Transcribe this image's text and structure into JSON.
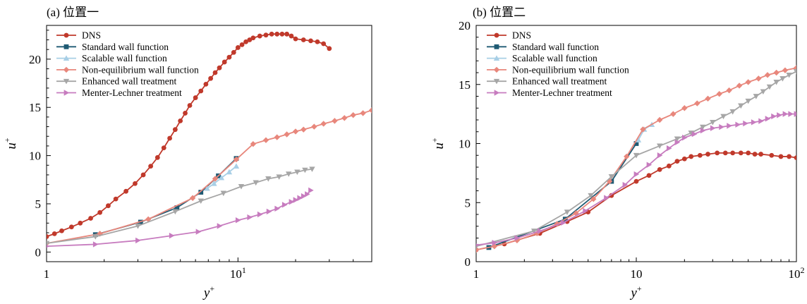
{
  "chart_data": [
    {
      "type": "line",
      "title": "(a) 位置一",
      "xlabel": "y",
      "xlabel_sup": "+",
      "ylabel": "u",
      "ylabel_sup": "+",
      "xscale": "log",
      "xlim": [
        1,
        50
      ],
      "ylim": [
        -1,
        23.5
      ],
      "xticks": [
        {
          "value": 1,
          "base": "1",
          "exp": ""
        },
        {
          "value": 10,
          "base": "10",
          "exp": "1"
        }
      ],
      "yticks": [
        0,
        5,
        10,
        15,
        20
      ],
      "legend_position": "top-left",
      "series": [
        {
          "name": "DNS",
          "color": "#c0392b",
          "marker": "circle",
          "marker_step": 1,
          "x": [
            1,
            1.1,
            1.2,
            1.35,
            1.5,
            1.7,
            1.9,
            2.1,
            2.3,
            2.6,
            2.9,
            3.2,
            3.5,
            3.8,
            4.1,
            4.4,
            4.7,
            5.0,
            5.3,
            5.6,
            6.0,
            6.4,
            6.8,
            7.2,
            7.6,
            8.0,
            8.5,
            9.0,
            9.5,
            10,
            10.5,
            11,
            11.5,
            12,
            13,
            14,
            15,
            16,
            17,
            18,
            19,
            20,
            22,
            24,
            26,
            28,
            30
          ],
          "y": [
            1.6,
            1.9,
            2.2,
            2.6,
            3.0,
            3.5,
            4.1,
            4.8,
            5.5,
            6.3,
            7.1,
            8.0,
            8.9,
            9.8,
            10.8,
            11.8,
            12.7,
            13.6,
            14.4,
            15.2,
            16.0,
            16.7,
            17.4,
            18.0,
            18.6,
            19.1,
            19.7,
            20.2,
            20.7,
            21.2,
            21.5,
            21.8,
            22.0,
            22.2,
            22.4,
            22.5,
            22.6,
            22.6,
            22.6,
            22.6,
            22.4,
            22.1,
            22.0,
            21.9,
            21.8,
            21.6,
            21.1
          ]
        },
        {
          "name": "Standard wall function",
          "color": "#1f5a73",
          "marker": "square",
          "marker_step": 1,
          "x": [
            1.8,
            3.1,
            4.8,
            6.4,
            7.9,
            9.8
          ],
          "y": [
            1.8,
            3.1,
            4.6,
            6.2,
            7.9,
            9.7
          ]
        },
        {
          "name": "Scalable wall function",
          "color": "#a8cfe6",
          "marker": "triangle-up",
          "marker_step": 1,
          "x": [
            6.9,
            7.5,
            8.2,
            9.0,
            9.8
          ],
          "y": [
            6.6,
            7.1,
            7.7,
            8.3,
            8.9
          ]
        },
        {
          "name": "Non-equilibrium wall function",
          "color": "#e8877c",
          "marker": "diamond",
          "marker_step": 1,
          "x": [
            1,
            1.9,
            3.4,
            5.8,
            7.6,
            9.8,
            12,
            14,
            16,
            18,
            20,
            22,
            25,
            28,
            32,
            36,
            40,
            45,
            50
          ],
          "y": [
            0.9,
            1.9,
            3.4,
            5.6,
            7.6,
            9.6,
            11.2,
            11.6,
            11.9,
            12.2,
            12.5,
            12.7,
            13.0,
            13.3,
            13.6,
            13.9,
            14.2,
            14.4,
            14.7
          ]
        },
        {
          "name": "Enhanced wall treatment",
          "color": "#a6a6a6",
          "marker": "triangle-down",
          "marker_step": 1,
          "x": [
            1,
            1.8,
            3.0,
            4.7,
            6.4,
            8.4,
            10.4,
            12.4,
            14.4,
            16.4,
            18.4,
            20.4,
            22.4,
            24.4
          ],
          "y": [
            0.9,
            1.6,
            2.7,
            4.2,
            5.3,
            6.1,
            6.8,
            7.2,
            7.6,
            7.8,
            8.1,
            8.3,
            8.5,
            8.6
          ]
        },
        {
          "name": "Menter-Lechner treatment",
          "color": "#c77cbf",
          "marker": "triangle-right",
          "marker_step": 1,
          "x": [
            1,
            1.8,
            3.0,
            4.5,
            6.2,
            8.0,
            10,
            11.5,
            13,
            14.5,
            16,
            17.5,
            19,
            20,
            21,
            22,
            23,
            24
          ],
          "y": [
            0.6,
            0.8,
            1.2,
            1.7,
            2.1,
            2.7,
            3.3,
            3.6,
            3.9,
            4.2,
            4.5,
            4.9,
            5.2,
            5.4,
            5.6,
            5.8,
            6.0,
            6.4
          ]
        }
      ]
    },
    {
      "type": "line",
      "title": "(b) 位置二",
      "xlabel": "y",
      "xlabel_sup": "+",
      "ylabel": "u",
      "ylabel_sup": "+",
      "xscale": "log",
      "xlim": [
        1,
        100
      ],
      "ylim": [
        0,
        20
      ],
      "xticks": [
        {
          "value": 1,
          "base": "1",
          "exp": ""
        },
        {
          "value": 10,
          "base": "10",
          "exp": ""
        },
        {
          "value": 100,
          "base": "10",
          "exp": "2"
        }
      ],
      "yticks": [
        0,
        5,
        10,
        15,
        20
      ],
      "legend_position": "top-left",
      "series": [
        {
          "name": "DNS",
          "color": "#c0392b",
          "marker": "circle",
          "marker_step": 1,
          "x": [
            1,
            1.5,
            2.5,
            3.7,
            5,
            7,
            10,
            12,
            14,
            16,
            18,
            20,
            22,
            25,
            28,
            32,
            36,
            40,
            45,
            50,
            55,
            60,
            70,
            80,
            90,
            100
          ],
          "y": [
            1.0,
            1.5,
            2.4,
            3.4,
            4.2,
            5.6,
            6.8,
            7.3,
            7.8,
            8.1,
            8.5,
            8.7,
            8.9,
            9.0,
            9.1,
            9.2,
            9.2,
            9.2,
            9.2,
            9.2,
            9.1,
            9.1,
            9.0,
            8.9,
            8.9,
            8.8
          ]
        },
        {
          "name": "Standard wall function",
          "color": "#1f5a73",
          "marker": "square",
          "marker_step": 1,
          "x": [
            1.2,
            3.6,
            7.0,
            10.0
          ],
          "y": [
            1.2,
            3.6,
            6.8,
            10.0
          ]
        },
        {
          "name": "Scalable wall function",
          "color": "#a8cfe6",
          "marker": "triangle-up",
          "marker_step": 1,
          "x": [
            10.3,
            11.2,
            12.5
          ],
          "y": [
            10.3,
            11.2,
            11.6
          ]
        },
        {
          "name": "Non-equilibrium wall function",
          "color": "#e8877c",
          "marker": "diamond",
          "marker_step": 1,
          "x": [
            1,
            1.3,
            1.8,
            2.4,
            3.2,
            4.2,
            5.4,
            6.8,
            8.7,
            11,
            14,
            17,
            20,
            24,
            28,
            33,
            38,
            44,
            50,
            58,
            66,
            75,
            85,
            100
          ],
          "y": [
            1.0,
            1.3,
            1.8,
            2.4,
            3.2,
            4.1,
            5.3,
            6.8,
            8.9,
            11.2,
            12.0,
            12.5,
            13.0,
            13.4,
            13.8,
            14.2,
            14.5,
            14.9,
            15.2,
            15.5,
            15.8,
            16.0,
            16.2,
            16.4
          ]
        },
        {
          "name": "Enhanced wall treatment",
          "color": "#a6a6a6",
          "marker": "triangle-down",
          "marker_step": 1,
          "x": [
            1,
            2.3,
            3.7,
            5.2,
            7,
            10,
            14,
            18,
            22,
            26,
            30,
            35,
            40,
            45,
            50,
            56,
            62,
            68,
            75,
            82,
            90,
            100
          ],
          "y": [
            1.3,
            2.6,
            4.2,
            5.6,
            7.2,
            9.0,
            9.8,
            10.4,
            10.9,
            11.4,
            11.8,
            12.3,
            12.7,
            13.2,
            13.6,
            14.0,
            14.4,
            14.8,
            15.2,
            15.5,
            15.8,
            16.1
          ]
        },
        {
          "name": "Menter-Lechner treatment",
          "color": "#c77cbf",
          "marker": "triangle-right",
          "marker_step": 1,
          "x": [
            1,
            1.3,
            1.8,
            2.5,
            3.5,
            4.8,
            6.5,
            8.5,
            10,
            12,
            14,
            16,
            18,
            20,
            23,
            26,
            30,
            34,
            38,
            43,
            48,
            54,
            60,
            66,
            72,
            78,
            85,
            92,
            100
          ],
          "y": [
            1.4,
            1.6,
            2.0,
            2.6,
            3.3,
            4.3,
            5.4,
            6.5,
            7.4,
            8.2,
            9.0,
            9.6,
            10.1,
            10.5,
            10.8,
            11.1,
            11.3,
            11.4,
            11.5,
            11.6,
            11.7,
            11.8,
            11.9,
            12.1,
            12.3,
            12.4,
            12.5,
            12.5,
            12.5
          ]
        }
      ]
    }
  ]
}
